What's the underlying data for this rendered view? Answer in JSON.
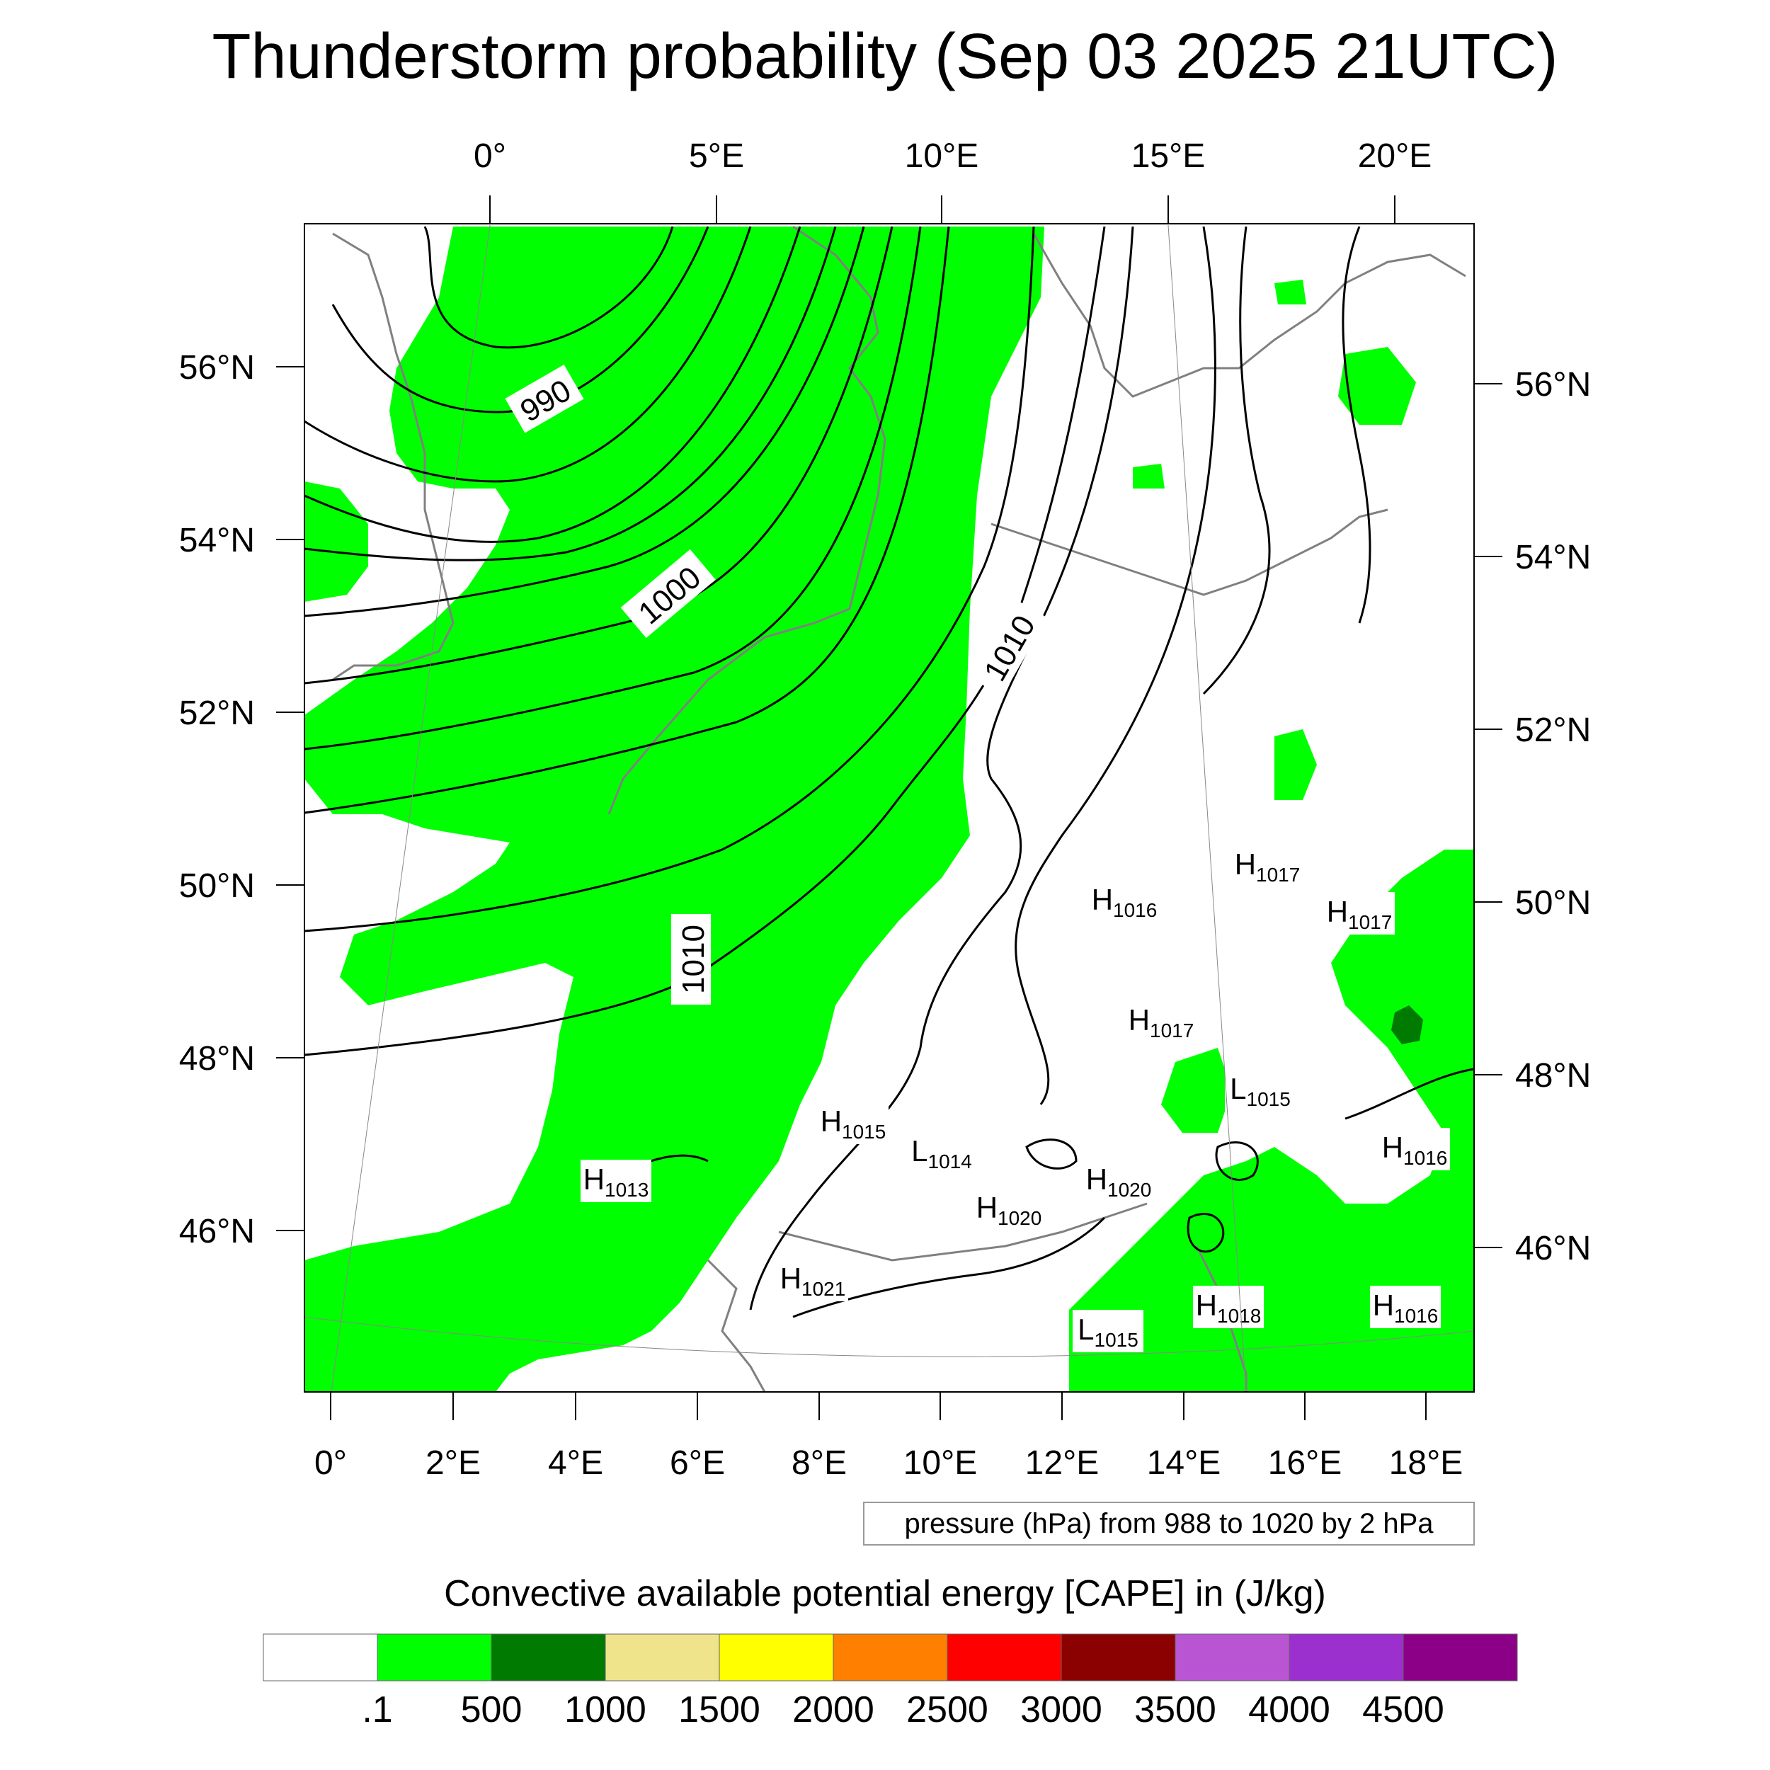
{
  "title": "Thunderstorm probability (Sep 03 2025 21UTC)",
  "top_lon_labels": [
    "0°",
    "5°E",
    "10°E",
    "15°E",
    "20°E"
  ],
  "bottom_lon_labels": [
    "0°",
    "2°E",
    "4°E",
    "6°E",
    "8°E",
    "10°E",
    "12°E",
    "14°E",
    "16°E",
    "18°E"
  ],
  "left_lat_labels": [
    "56°N",
    "54°N",
    "52°N",
    "50°N",
    "48°N",
    "46°N"
  ],
  "right_lat_labels": [
    "56°N",
    "54°N",
    "52°N",
    "50°N",
    "48°N",
    "46°N"
  ],
  "isobar_labels": [
    "990",
    "1000",
    "1010",
    "1010"
  ],
  "pressure_centers": [
    {
      "letter": "H",
      "value": "1013"
    },
    {
      "letter": "H",
      "value": "1015"
    },
    {
      "letter": "L",
      "value": "1014"
    },
    {
      "letter": "H",
      "value": "1021"
    },
    {
      "letter": "H",
      "value": "1020"
    },
    {
      "letter": "H",
      "value": "1020"
    },
    {
      "letter": "H",
      "value": "1016"
    },
    {
      "letter": "H",
      "value": "1017"
    },
    {
      "letter": "H",
      "value": "1017"
    },
    {
      "letter": "H",
      "value": "1017"
    },
    {
      "letter": "L",
      "value": "1015"
    },
    {
      "letter": "H",
      "value": "1016"
    },
    {
      "letter": "H",
      "value": "1018"
    },
    {
      "letter": "L",
      "value": "1015"
    },
    {
      "letter": "H",
      "value": "1016"
    }
  ],
  "pressure_note": "pressure (hPa) from 988 to 1020 by 2 hPa",
  "colorbar": {
    "title": "Convective available potential energy [CAPE] in (J/kg)",
    "colors": [
      "#ffffff",
      "#00ff00",
      "#007a00",
      "#efe48c",
      "#ffff00",
      "#ff8000",
      "#ff0000",
      "#8b0000",
      "#b955d3",
      "#9b30ce",
      "#8b0087"
    ],
    "labels": [
      ".1",
      "500",
      "1000",
      "1500",
      "2000",
      "2500",
      "3000",
      "3500",
      "4000",
      "4500"
    ]
  },
  "colors": {
    "cape_low": "#00ff00",
    "cape_mid": "#007a00",
    "isobar": "#000000",
    "coastline": "#808080"
  }
}
